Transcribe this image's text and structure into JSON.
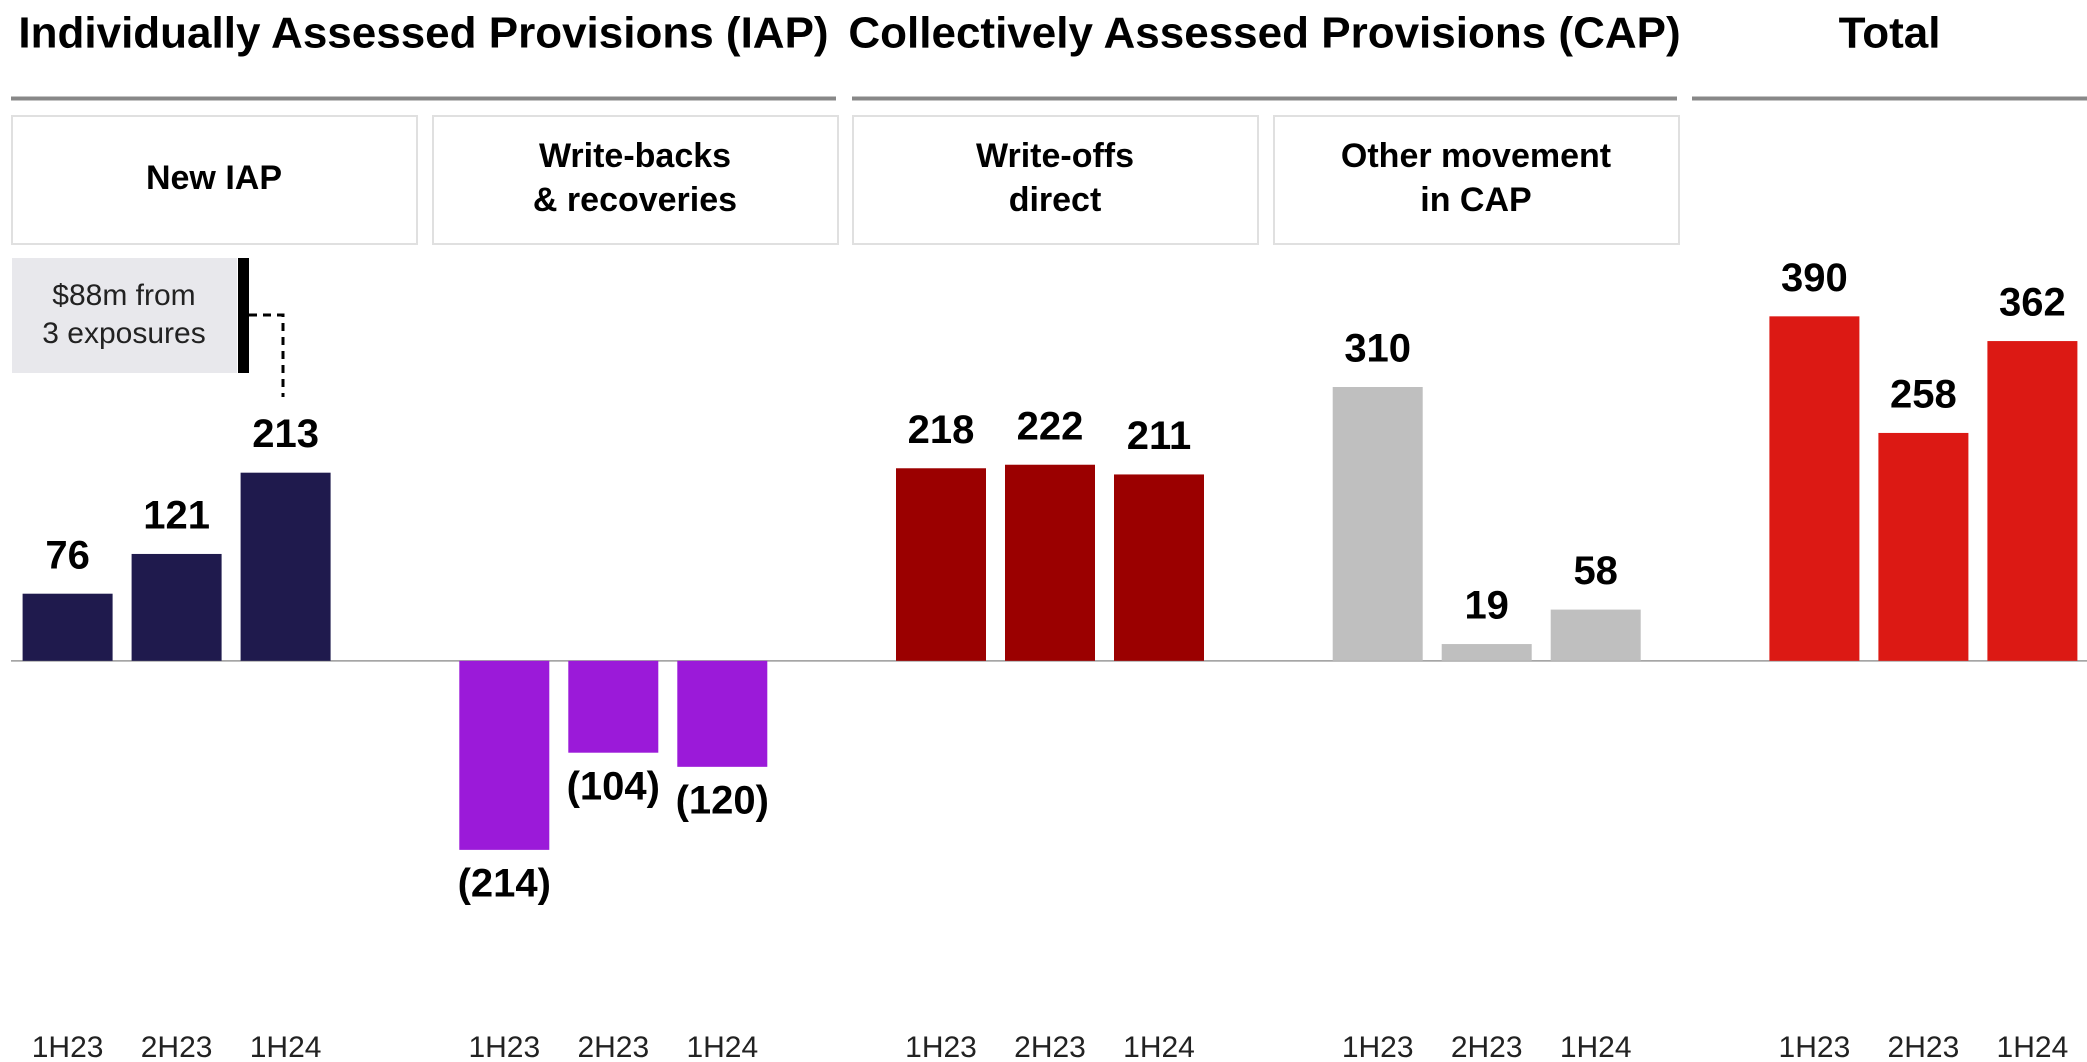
{
  "chart_data": {
    "type": "bar",
    "headers": [
      "Individually Assessed Provisions (IAP)",
      "Collectively Assessed Provisions (CAP)",
      "Total"
    ],
    "ylim": [
      -350,
      400
    ],
    "annotation": [
      "$88m from",
      "3 exposures"
    ],
    "groups": [
      {
        "name": [
          "New IAP"
        ],
        "color": "#1f1a4d",
        "categories": [
          "1H23",
          "2H23",
          "1H24"
        ],
        "values": [
          76,
          121,
          213
        ]
      },
      {
        "name": [
          "Write-backs",
          "& recoveries"
        ],
        "color": "#9b1ad9",
        "categories": [
          "1H23",
          "2H23",
          "1H24"
        ],
        "values": [
          -214,
          -104,
          -120
        ],
        "value_labels": [
          "(214)",
          "(104)",
          "(120)"
        ]
      },
      {
        "name": [
          "Write-offs",
          "direct"
        ],
        "color": "#9b0000",
        "categories": [
          "1H23",
          "2H23",
          "1H24"
        ],
        "values": [
          218,
          222,
          211
        ]
      },
      {
        "name": [
          "Other movement",
          "in CAP"
        ],
        "color": "#bfbfbf",
        "categories": [
          "1H23",
          "2H23",
          "1H24"
        ],
        "values": [
          310,
          19,
          58
        ]
      },
      {
        "color": "#dc1914",
        "categories": [
          "1H23",
          "2H23",
          "1H24"
        ],
        "values": [
          390,
          258,
          362
        ]
      }
    ]
  }
}
